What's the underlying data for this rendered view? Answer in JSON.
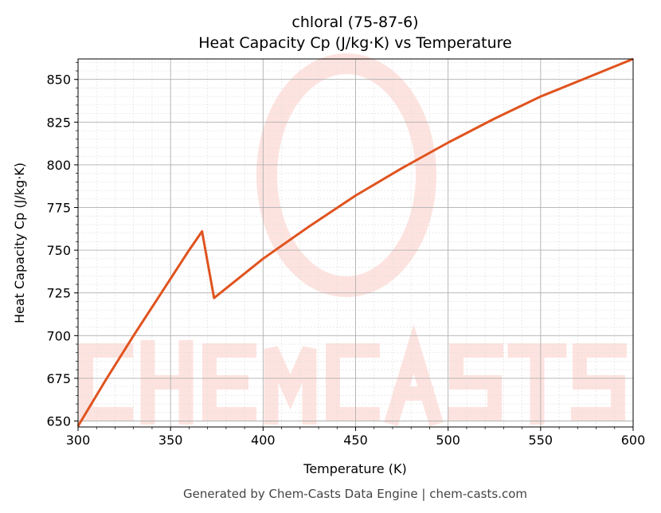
{
  "chart_data": {
    "type": "line",
    "title": "chloral (75-87-6)",
    "subtitle": "Heat Capacity Cp (J/kg·K) vs Temperature",
    "xlabel": "Temperature (K)",
    "ylabel": "Heat Capacity Cp (J/kg·K)",
    "xlim": [
      300,
      600
    ],
    "ylim": [
      646.5,
      862
    ],
    "xticks": [
      300,
      350,
      400,
      450,
      500,
      550,
      600
    ],
    "yticks": [
      650,
      675,
      700,
      725,
      750,
      775,
      800,
      825,
      850
    ],
    "grid": true,
    "series": [
      {
        "name": "Cp",
        "color": "#e0531f",
        "x": [
          300,
          315,
          330,
          345,
          360,
          367,
          373.5,
          385,
          400,
          425,
          450,
          475,
          500,
          525,
          550,
          575,
          600
        ],
        "y": [
          647,
          674,
          700,
          725,
          750,
          761,
          722,
          732,
          745,
          764,
          782,
          798,
          813,
          827,
          840,
          851,
          862
        ]
      }
    ],
    "watermark": "CHEMCASTS",
    "footer": "Generated by Chem-Casts Data Engine | chem-casts.com"
  }
}
